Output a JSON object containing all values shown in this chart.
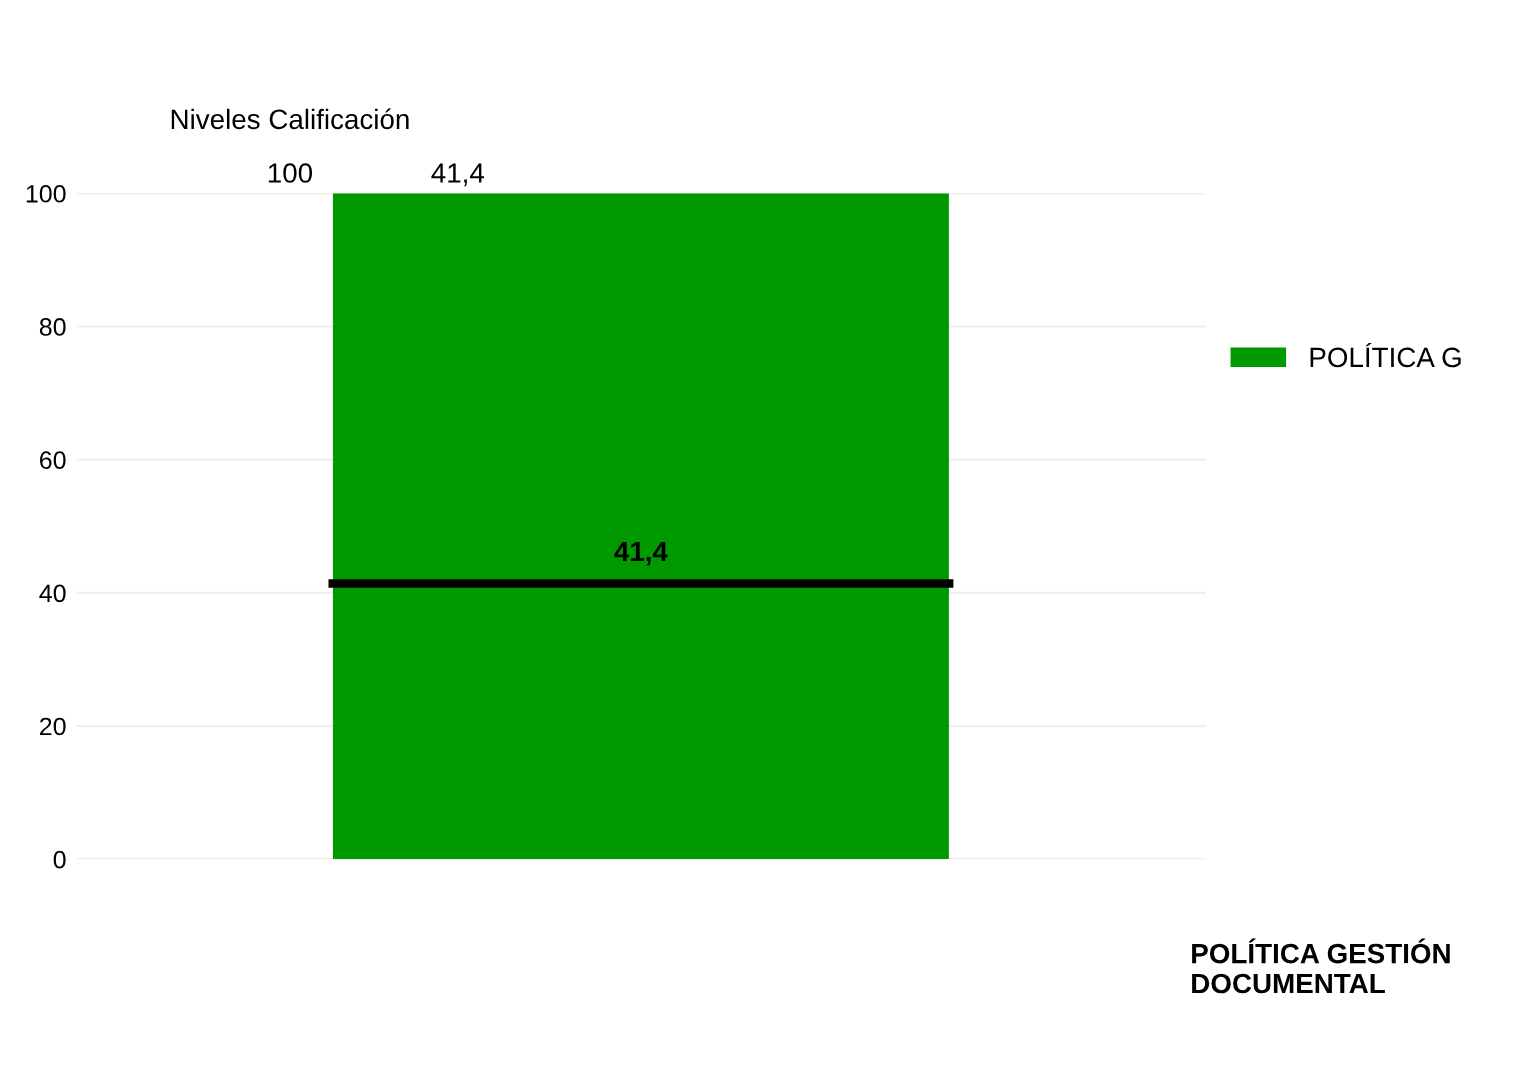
{
  "chart_data": {
    "type": "bar",
    "categories": [
      null
    ],
    "series": [
      {
        "name": "POLÍTICA G",
        "color": "#009900",
        "values": [
          100
        ]
      }
    ],
    "xlabel": "POLÍTICA GESTIÓN DOCUMENTAL",
    "ylim": [
      0,
      100
    ],
    "yticks": [
      0,
      20,
      40,
      60,
      80,
      100
    ],
    "grid": "y",
    "legend": "right",
    "ref_lines": [
      {
        "axis": "y",
        "value": 41.4,
        "label": "41,4",
        "color": "#000000"
      }
    ],
    "annotations": [
      "Niveles Calificación",
      "100",
      "41,4"
    ]
  }
}
